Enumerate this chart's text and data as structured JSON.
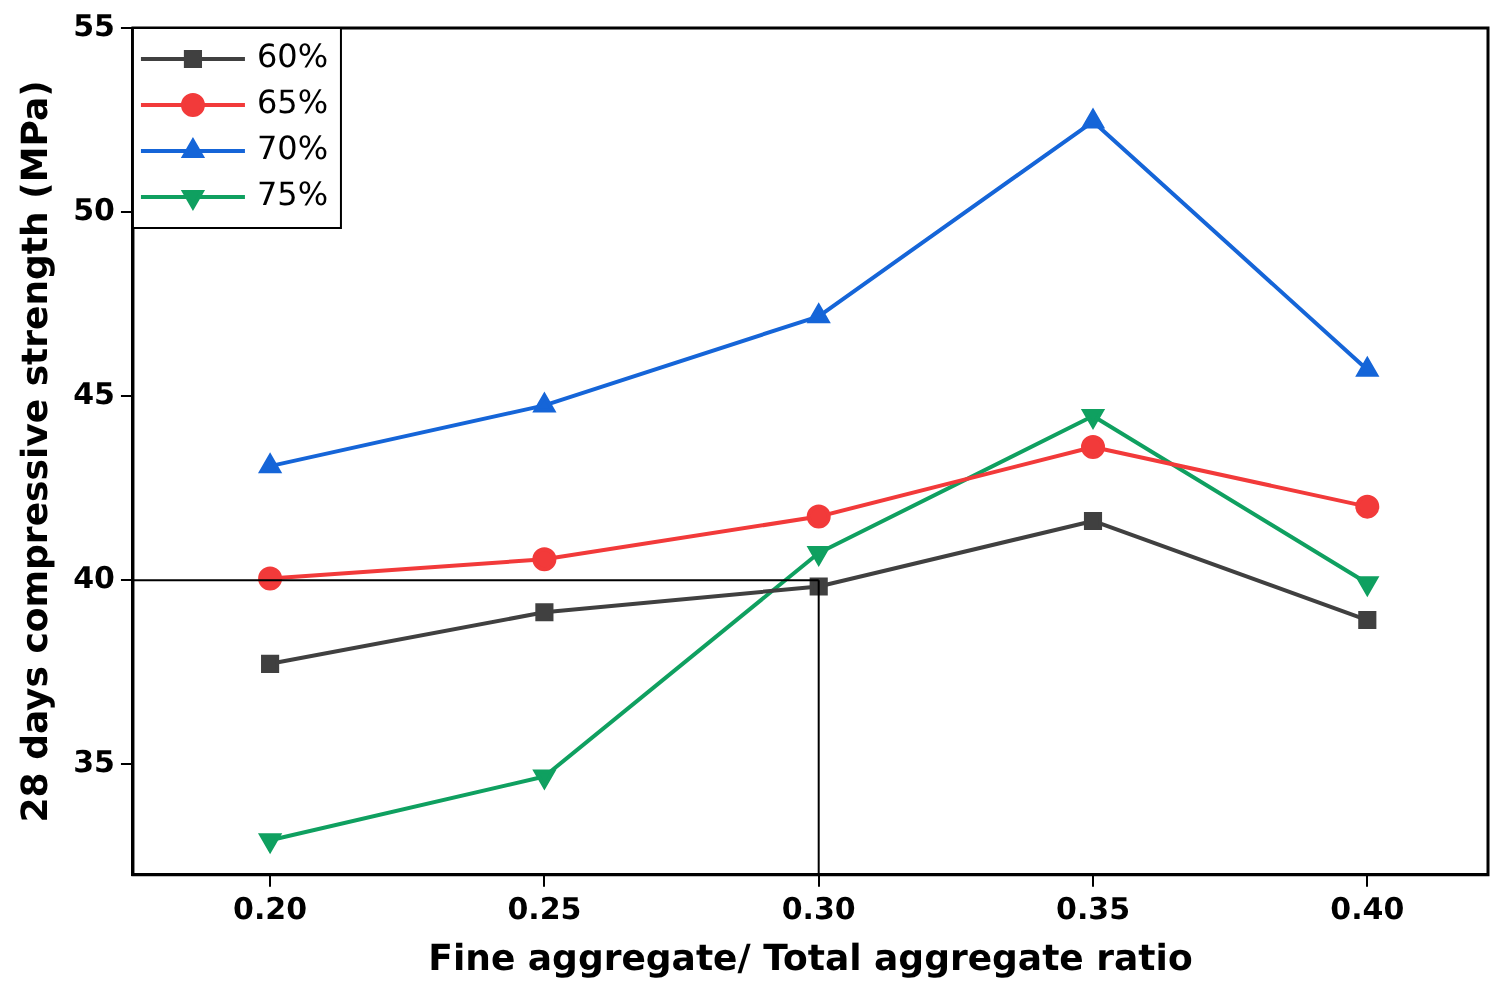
{
  "chart_data": {
    "type": "line",
    "xlabel": "Fine aggregate/ Total aggregate ratio",
    "ylabel": "28 days compressive strength (MPa)",
    "x": [
      0.2,
      0.25,
      0.3,
      0.35,
      0.4
    ],
    "series": [
      {
        "name": "60%",
        "color": "#404040",
        "marker": "square",
        "values": [
          37.73,
          39.13,
          39.83,
          41.61,
          38.92
        ]
      },
      {
        "name": "65%",
        "color": "#f23a3a",
        "marker": "circle",
        "values": [
          40.05,
          40.57,
          41.73,
          43.62,
          42.0
        ]
      },
      {
        "name": "70%",
        "color": "#1565d8",
        "marker": "triangle",
        "values": [
          43.1,
          44.75,
          47.17,
          52.46,
          45.72
        ]
      },
      {
        "name": "75%",
        "color": "#0fa060",
        "marker": "triangle-down",
        "values": [
          32.94,
          34.67,
          40.74,
          44.46,
          39.92
        ]
      }
    ],
    "xlim": [
      0.175,
      0.422
    ],
    "xticks": [
      {
        "value": 0.2,
        "label": "0.20"
      },
      {
        "value": 0.25,
        "label": "0.25"
      },
      {
        "value": 0.3,
        "label": "0.30"
      },
      {
        "value": 0.35,
        "label": "0.35"
      },
      {
        "value": 0.4,
        "label": "0.40"
      }
    ],
    "ylim": [
      32,
      55
    ],
    "yticks": [
      35,
      40,
      45,
      50,
      55
    ],
    "ref_lines": [
      {
        "axis": "y",
        "value": 40,
        "color": "#000000"
      },
      {
        "axis": "x",
        "value": 0.3,
        "color": "#000000"
      }
    ],
    "grid": false,
    "legend": "top left"
  }
}
